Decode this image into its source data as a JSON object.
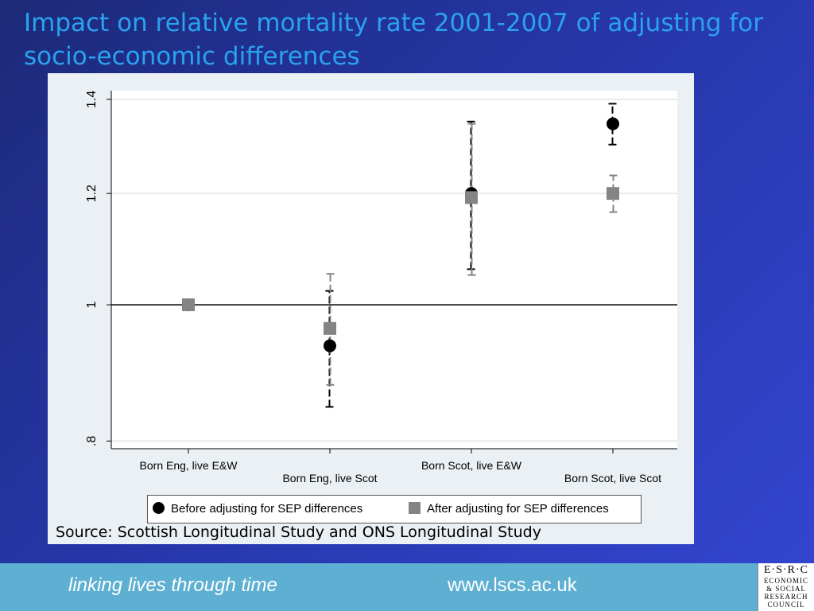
{
  "slide": {
    "title": "Impact on relative mortality rate 2001-2007 of adjusting for socio-economic differences",
    "source": "Source: Scottish Longitudinal Study and ONS Longitudinal Study"
  },
  "footer": {
    "tagline": "linking lives through time",
    "website": "www.lscs.ac.uk",
    "logo_lines": [
      "E·S·R·C",
      "ECONOMIC",
      "& SOCIAL",
      "RESEARCH",
      "COUNCIL"
    ]
  },
  "chart_data": {
    "type": "scatter",
    "categories": [
      "Born Eng, live E&W",
      "Born Eng, live Scot",
      "Born Scot, live E&W",
      "Born Scot, live Scot"
    ],
    "yticks": [
      {
        "value": 0.8,
        "label": ".8"
      },
      {
        "value": 1.0,
        "label": "1"
      },
      {
        "value": 1.2,
        "label": "1.2"
      },
      {
        "value": 1.4,
        "label": "1.4"
      }
    ],
    "ylim": [
      0.79,
      1.42
    ],
    "y_scale": "log",
    "reference_line": 1,
    "grid": true,
    "legend_position": "bottom",
    "series": [
      {
        "name": "Before adjusting for SEP differences",
        "marker": "circle",
        "color": "#000000",
        "values": [
          1.0,
          0.935,
          1.2,
          1.345
        ],
        "ci_low": [
          null,
          0.846,
          1.06,
          1.3
        ],
        "ci_high": [
          null,
          1.023,
          1.35,
          1.39
        ]
      },
      {
        "name": "After adjusting for SEP differences",
        "marker": "square",
        "color": "#848484",
        "values": [
          1.0,
          0.962,
          1.192,
          1.2
        ],
        "ci_low": [
          null,
          0.877,
          1.05,
          1.164
        ],
        "ci_high": [
          null,
          1.052,
          1.345,
          1.236
        ]
      }
    ]
  }
}
